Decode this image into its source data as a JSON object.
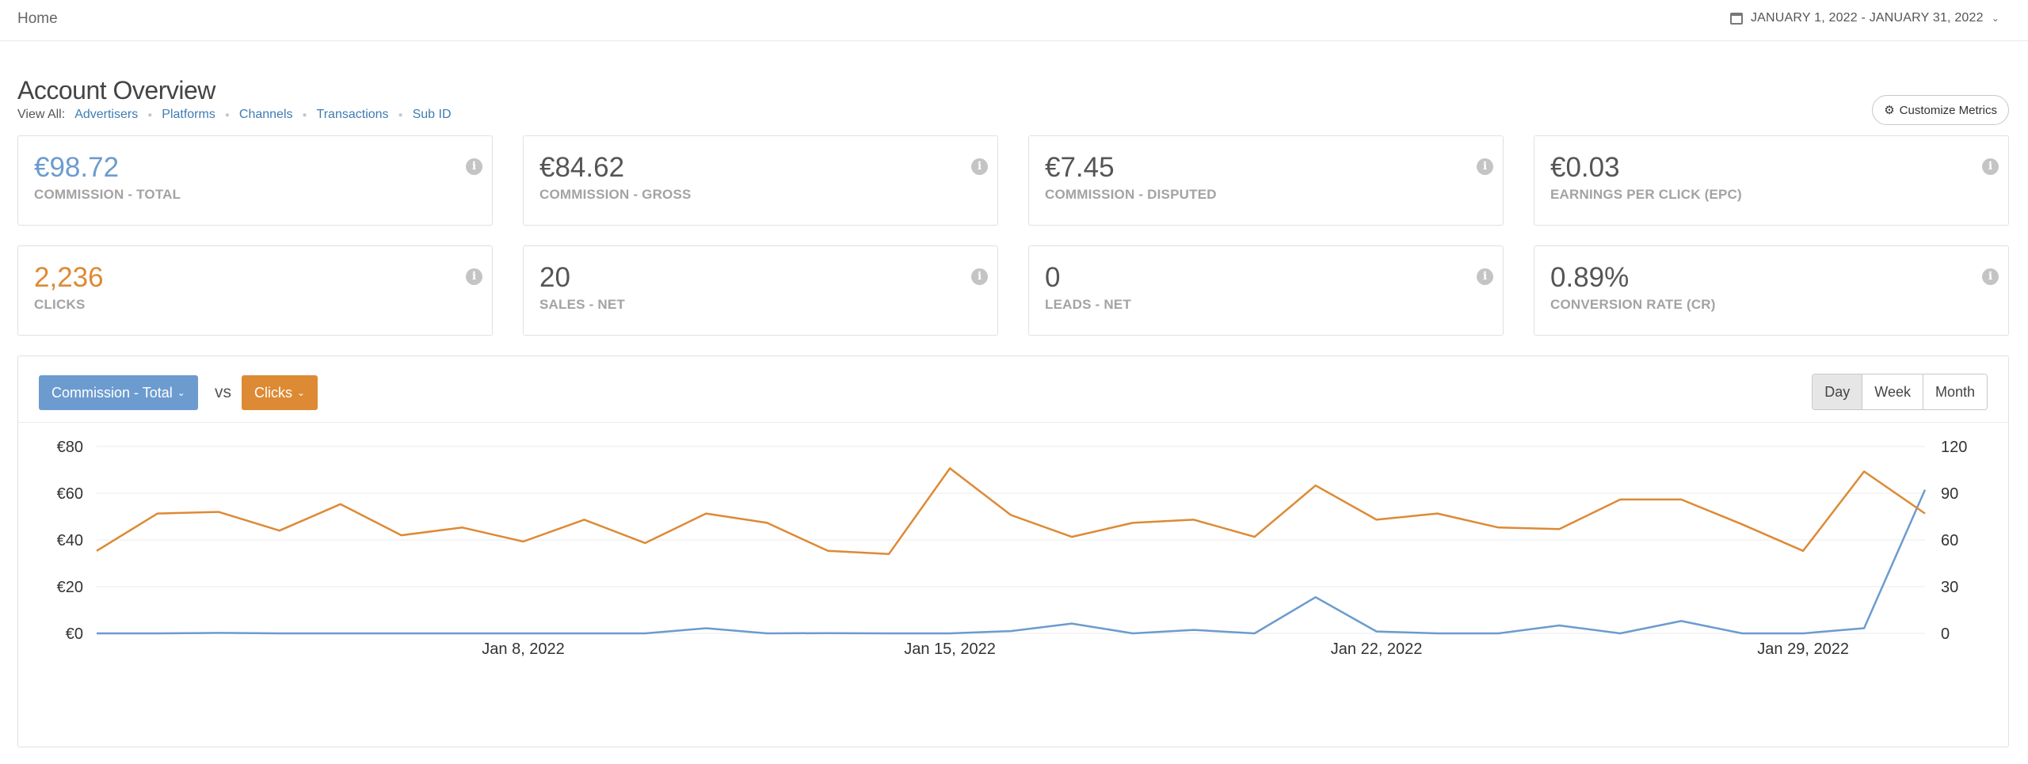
{
  "header": {
    "home": "Home",
    "date_range": "JANUARY 1, 2022 - JANUARY 31, 2022"
  },
  "overview": {
    "title": "Account Overview",
    "view_all_label": "View All:",
    "links": [
      "Advertisers",
      "Platforms",
      "Channels",
      "Transactions",
      "Sub ID"
    ],
    "customize_label": "Customize Metrics"
  },
  "cards": [
    {
      "value": "€98.72",
      "label": "COMMISSION - TOTAL",
      "color": "#6c9bcf"
    },
    {
      "value": "€84.62",
      "label": "COMMISSION - GROSS",
      "color": "#555555"
    },
    {
      "value": "€7.45",
      "label": "COMMISSION - DISPUTED",
      "color": "#555555"
    },
    {
      "value": "€0.03",
      "label": "EARNINGS PER CLICK (EPC)",
      "color": "#555555"
    },
    {
      "value": "2,236",
      "label": "CLICKS",
      "color": "#dd8a35"
    },
    {
      "value": "20",
      "label": "SALES - NET",
      "color": "#555555"
    },
    {
      "value": "0",
      "label": "LEADS - NET",
      "color": "#555555"
    },
    {
      "value": "0.89%",
      "label": "CONVERSION RATE (CR)",
      "color": "#555555"
    }
  ],
  "chart_controls": {
    "metric_a": "Commission - Total",
    "vs": "vs",
    "metric_b": "Clicks",
    "periods": [
      "Day",
      "Week",
      "Month"
    ],
    "active_period": "Day"
  },
  "chart_data": {
    "type": "line",
    "x": [
      "2022-01-01",
      "2022-01-02",
      "2022-01-03",
      "2022-01-04",
      "2022-01-05",
      "2022-01-06",
      "2022-01-07",
      "2022-01-08",
      "2022-01-09",
      "2022-01-10",
      "2022-01-11",
      "2022-01-12",
      "2022-01-13",
      "2022-01-14",
      "2022-01-15",
      "2022-01-16",
      "2022-01-17",
      "2022-01-18",
      "2022-01-19",
      "2022-01-20",
      "2022-01-21",
      "2022-01-22",
      "2022-01-23",
      "2022-01-24",
      "2022-01-25",
      "2022-01-26",
      "2022-01-27",
      "2022-01-28",
      "2022-01-29",
      "2022-01-30",
      "2022-01-31"
    ],
    "x_ticks": [
      {
        "date": "2022-01-08",
        "label": "Jan 8, 2022"
      },
      {
        "date": "2022-01-15",
        "label": "Jan 15, 2022"
      },
      {
        "date": "2022-01-22",
        "label": "Jan 22, 2022"
      },
      {
        "date": "2022-01-29",
        "label": "Jan 29, 2022"
      }
    ],
    "y_left": {
      "ticks": [
        0,
        20,
        40,
        60,
        80
      ],
      "tick_labels": [
        "€0",
        "€20",
        "€40",
        "€60",
        "€80"
      ],
      "range": [
        0,
        80
      ]
    },
    "y_right": {
      "ticks": [
        0,
        30,
        60,
        90,
        120
      ],
      "tick_labels": [
        "0",
        "30",
        "60",
        "90",
        "120"
      ],
      "range": [
        0,
        120
      ]
    },
    "grid": true,
    "series": [
      {
        "axis": "left",
        "color": "#6c9bcf",
        "values": [
          0,
          0,
          0.2,
          0,
          0,
          0,
          0,
          0,
          0,
          0,
          2.2,
          0,
          0.1,
          0,
          0,
          1,
          4.2,
          0,
          1.5,
          0,
          15.5,
          0.8,
          0,
          0,
          3.4,
          0,
          5.3,
          0,
          0,
          2.2,
          61.5
        ]
      },
      {
        "axis": "right",
        "color": "#dd8a35",
        "values": [
          53,
          77,
          78,
          66,
          83,
          63,
          68,
          59,
          73,
          58,
          77,
          71,
          53,
          51,
          106,
          76,
          62,
          71,
          73,
          62,
          95,
          73,
          77,
          68,
          67,
          86,
          86,
          70,
          53,
          104,
          77
        ]
      }
    ]
  }
}
